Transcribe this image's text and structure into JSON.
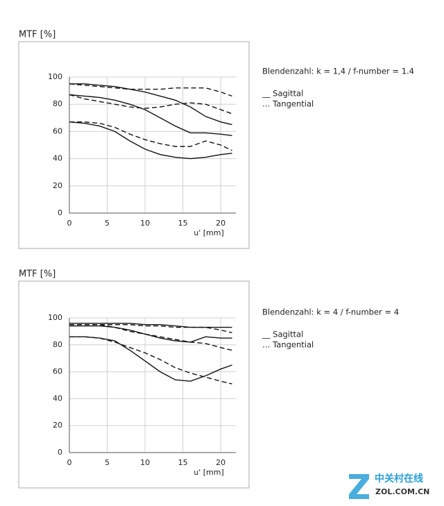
{
  "chart_data": [
    {
      "type": "line",
      "title": "MTF [%]",
      "xlabel": "u' [mm]",
      "annotation": "Blendenzahl: k = 1,4 / f-number = 1.4",
      "legend": [
        "__ Sagittal",
        "… Tangential"
      ],
      "xlim": [
        0,
        22
      ],
      "ylim": [
        0,
        100
      ],
      "xticks": [
        0,
        5,
        10,
        15,
        20
      ],
      "yticks": [
        0,
        20,
        40,
        60,
        80,
        100
      ],
      "grid": true,
      "x": [
        0,
        2,
        4,
        6,
        8,
        10,
        12,
        14,
        16,
        18,
        20,
        21.5
      ],
      "series": [
        {
          "color": "#111111",
          "dashed": false,
          "values": [
            95,
            95,
            94,
            93,
            91,
            89,
            86,
            83,
            78,
            71,
            67,
            65
          ]
        },
        {
          "color": "#111111",
          "dashed": false,
          "values": [
            87,
            86,
            85,
            83,
            80,
            76,
            70,
            64,
            59,
            59,
            58,
            57
          ]
        },
        {
          "color": "#111111",
          "dashed": false,
          "values": [
            67,
            66,
            64,
            60,
            53,
            47,
            43,
            41,
            40,
            41,
            43,
            44
          ]
        },
        {
          "color": "#111111",
          "dashed": true,
          "values": [
            95,
            94,
            93,
            92,
            91,
            91,
            91,
            92,
            92,
            92,
            89,
            86
          ]
        },
        {
          "color": "#111111",
          "dashed": true,
          "values": [
            87,
            84,
            82,
            80,
            78,
            77,
            78,
            80,
            81,
            80,
            76,
            73
          ]
        },
        {
          "color": "#111111",
          "dashed": true,
          "values": [
            67,
            67,
            66,
            63,
            58,
            54,
            51,
            49,
            49,
            53,
            50,
            46
          ]
        }
      ]
    },
    {
      "type": "line",
      "title": "MTF [%]",
      "xlabel": "u' [mm]",
      "annotation": "Blendenzahl: k = 4 / f-number = 4",
      "legend": [
        "__ Sagittal",
        "… Tangential"
      ],
      "xlim": [
        0,
        22
      ],
      "ylim": [
        0,
        100
      ],
      "xticks": [
        0,
        5,
        10,
        15,
        20
      ],
      "yticks": [
        0,
        20,
        40,
        60,
        80,
        100
      ],
      "grid": true,
      "x": [
        0,
        2,
        4,
        6,
        8,
        10,
        12,
        14,
        16,
        18,
        20,
        21.5
      ],
      "series": [
        {
          "color": "#111111",
          "dashed": false,
          "values": [
            96,
            96,
            96,
            96,
            96,
            95,
            95,
            94,
            93,
            93,
            93,
            93
          ]
        },
        {
          "color": "#111111",
          "dashed": false,
          "values": [
            94,
            94,
            94,
            93,
            91,
            88,
            85,
            83,
            82,
            86,
            85,
            85
          ]
        },
        {
          "color": "#111111",
          "dashed": false,
          "values": [
            86,
            86,
            85,
            83,
            76,
            68,
            60,
            54,
            53,
            57,
            62,
            65
          ]
        },
        {
          "color": "#111111",
          "dashed": true,
          "values": [
            95,
            95,
            95,
            95,
            95,
            94,
            94,
            93,
            93,
            93,
            91,
            89
          ]
        },
        {
          "color": "#111111",
          "dashed": true,
          "values": [
            95,
            95,
            95,
            93,
            90,
            88,
            86,
            84,
            82,
            81,
            78,
            76
          ]
        },
        {
          "color": "#111111",
          "dashed": true,
          "values": [
            86,
            86,
            85,
            82,
            78,
            74,
            69,
            63,
            59,
            56,
            53,
            51
          ]
        }
      ]
    }
  ],
  "watermark": {
    "name": "中关村在线",
    "site": "ZOL.COM.CN"
  }
}
